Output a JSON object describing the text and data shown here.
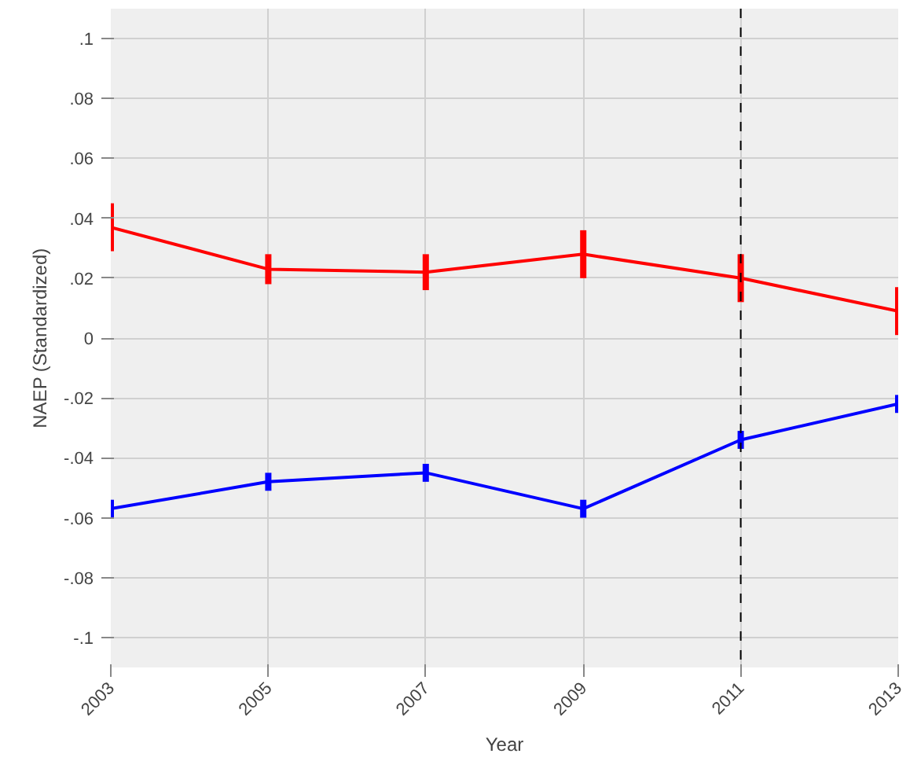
{
  "chart_data": {
    "type": "line",
    "xlabel": "Year",
    "ylabel": "NAEP (Standardized)",
    "x": [
      2003,
      2005,
      2007,
      2009,
      2011,
      2013
    ],
    "series": [
      {
        "color": "#ff0000",
        "values": [
          0.037,
          0.023,
          0.022,
          0.028,
          0.02,
          0.009
        ],
        "errors": [
          0.008,
          0.005,
          0.006,
          0.008,
          0.008,
          0.008
        ]
      },
      {
        "color": "#0000ff",
        "values": [
          -0.057,
          -0.048,
          -0.045,
          -0.057,
          -0.034,
          -0.022
        ],
        "errors": [
          0.003,
          0.003,
          0.003,
          0.003,
          0.003,
          0.003
        ]
      }
    ],
    "xlim": [
      2003,
      2013
    ],
    "xticks": [
      2003,
      2005,
      2007,
      2009,
      2011,
      2013
    ],
    "ylim": [
      -0.11,
      0.11
    ],
    "yticks": [
      {
        "value": 0.1,
        "label": ".1"
      },
      {
        "value": 0.08,
        "label": ".08"
      },
      {
        "value": 0.06,
        "label": ".06"
      },
      {
        "value": 0.04,
        "label": ".04"
      },
      {
        "value": 0.02,
        "label": ".02"
      },
      0,
      {
        "value": -0.02,
        "label": "-.02"
      },
      {
        "value": -0.04,
        "label": "-.04"
      },
      {
        "value": -0.06,
        "label": "-.06"
      },
      {
        "value": -0.08,
        "label": "-.08"
      },
      {
        "value": -0.1,
        "label": "-.1"
      }
    ],
    "ref_lines": [
      {
        "axis": "x",
        "value": 2011,
        "color": "#000000",
        "line_style": "dashed"
      }
    ],
    "grid": true,
    "marker": "none",
    "line_style": "solid"
  }
}
